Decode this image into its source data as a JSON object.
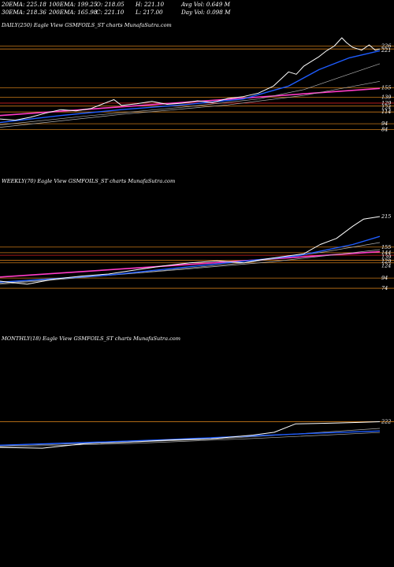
{
  "header": {
    "row1": [
      "20EMA: 225.18",
      "100EMA: 199.25",
      "O: 218.05",
      "H: 221.10",
      "Avg Vol: 0.649 M"
    ],
    "row2": [
      "30EMA: 218.36",
      "200EMA: 165.98",
      "C: 221.10",
      "L: 217.00",
      "Day Vol: 0.098  M"
    ]
  },
  "colors": {
    "price": "#ffffff",
    "ema_blue": "#1e5cff",
    "ema_gray": "#b0b0b0",
    "level_orange": "#c87818",
    "level_pink": "#ff3cc8",
    "level_red": "#d02020",
    "background": "#000000"
  },
  "chart_data": [
    {
      "type": "line",
      "label": "DAILY(250) Eagle  View  GSMFOILS_ST charts MunafaSutra.com",
      "n": 250,
      "ylim": [
        50,
        240
      ],
      "tick_labels": [
        {
          "text": "226",
          "value": 226
        },
        {
          "text": "221",
          "value": 221
        },
        {
          "text": "155",
          "value": 155
        },
        {
          "text": "139",
          "value": 139
        },
        {
          "text": "129",
          "value": 129
        },
        {
          "text": "124",
          "value": 124
        },
        {
          "text": "114",
          "value": 114
        },
        {
          "text": "94",
          "value": 94
        },
        {
          "text": "84",
          "value": 84
        }
      ],
      "hlines": [
        {
          "value": 226,
          "color": "level_orange"
        },
        {
          "value": 221,
          "color": "level_orange"
        },
        {
          "value": 155,
          "color": "level_orange"
        },
        {
          "value": 139,
          "color": "level_orange"
        },
        {
          "value": 129,
          "color": "level_red"
        },
        {
          "value": 124,
          "color": "level_orange"
        },
        {
          "value": 114,
          "color": "level_orange"
        },
        {
          "value": 94,
          "color": "level_orange"
        },
        {
          "value": 84,
          "color": "level_orange"
        }
      ],
      "trend": {
        "from": [
          0,
          108
        ],
        "to": [
          250,
          154
        ],
        "color": "level_pink"
      },
      "price_path": [
        [
          0,
          102
        ],
        [
          10,
          100
        ],
        [
          20,
          105
        ],
        [
          30,
          112
        ],
        [
          40,
          118
        ],
        [
          50,
          116
        ],
        [
          60,
          120
        ],
        [
          70,
          130
        ],
        [
          75,
          135
        ],
        [
          80,
          125
        ],
        [
          90,
          128
        ],
        [
          100,
          132
        ],
        [
          110,
          127
        ],
        [
          120,
          129
        ],
        [
          130,
          133
        ],
        [
          140,
          130
        ],
        [
          150,
          137
        ],
        [
          160,
          140
        ],
        [
          170,
          146
        ],
        [
          180,
          158
        ],
        [
          185,
          170
        ],
        [
          190,
          182
        ],
        [
          195,
          178
        ],
        [
          200,
          192
        ],
        [
          205,
          200
        ],
        [
          210,
          208
        ],
        [
          215,
          218
        ],
        [
          220,
          226
        ],
        [
          225,
          240
        ],
        [
          228,
          232
        ],
        [
          232,
          224
        ],
        [
          238,
          219
        ],
        [
          243,
          228
        ],
        [
          247,
          219
        ],
        [
          250,
          221
        ]
      ],
      "ema_blue": [
        [
          0,
          96
        ],
        [
          40,
          108
        ],
        [
          80,
          118
        ],
        [
          120,
          126
        ],
        [
          160,
          136
        ],
        [
          190,
          158
        ],
        [
          210,
          186
        ],
        [
          230,
          206
        ],
        [
          250,
          218
        ]
      ],
      "ema_gray": [
        [
          0,
          92
        ],
        [
          60,
          108
        ],
        [
          120,
          122
        ],
        [
          170,
          136
        ],
        [
          200,
          152
        ],
        [
          225,
          174
        ],
        [
          250,
          196
        ]
      ],
      "ema_gray2": [
        [
          0,
          88
        ],
        [
          80,
          110
        ],
        [
          150,
          126
        ],
        [
          200,
          142
        ],
        [
          250,
          166
        ]
      ]
    },
    {
      "type": "line",
      "label": "WEEKLY(70) Eagle  View  GSMFOILS_ST charts MunafaSutra.com",
      "n": 70,
      "ylim": [
        40,
        260
      ],
      "tick_labels": [
        {
          "text": "215",
          "value": 215
        },
        {
          "text": "155",
          "value": 155
        },
        {
          "text": "144",
          "value": 144
        },
        {
          "text": "139",
          "value": 139
        },
        {
          "text": "129",
          "value": 129
        },
        {
          "text": "124",
          "value": 124
        },
        {
          "text": "94",
          "value": 94
        },
        {
          "text": "74",
          "value": 74
        }
      ],
      "hlines": [
        {
          "value": 155,
          "color": "level_orange"
        },
        {
          "value": 144,
          "color": "level_orange"
        },
        {
          "value": 139,
          "color": "level_red"
        },
        {
          "value": 129,
          "color": "level_orange"
        },
        {
          "value": 124,
          "color": "level_orange"
        },
        {
          "value": 94,
          "color": "level_orange"
        },
        {
          "value": 74,
          "color": "level_orange"
        }
      ],
      "trend": {
        "from": [
          0,
          96
        ],
        "to": [
          70,
          146
        ],
        "color": "level_pink"
      },
      "price_path": [
        [
          0,
          88
        ],
        [
          5,
          82
        ],
        [
          10,
          92
        ],
        [
          15,
          98
        ],
        [
          20,
          102
        ],
        [
          25,
          110
        ],
        [
          30,
          118
        ],
        [
          35,
          124
        ],
        [
          40,
          128
        ],
        [
          45,
          124
        ],
        [
          48,
          130
        ],
        [
          52,
          136
        ],
        [
          56,
          142
        ],
        [
          59,
          160
        ],
        [
          62,
          172
        ],
        [
          65,
          196
        ],
        [
          67,
          210
        ],
        [
          70,
          215
        ]
      ],
      "ema_blue": [
        [
          0,
          86
        ],
        [
          20,
          100
        ],
        [
          40,
          122
        ],
        [
          55,
          138
        ],
        [
          65,
          160
        ],
        [
          70,
          176
        ]
      ],
      "ema_gray": [
        [
          0,
          84
        ],
        [
          25,
          104
        ],
        [
          45,
          124
        ],
        [
          60,
          146
        ],
        [
          70,
          164
        ]
      ],
      "ema_gray2": [
        [
          0,
          82
        ],
        [
          30,
          108
        ],
        [
          50,
          126
        ],
        [
          70,
          150
        ]
      ]
    },
    {
      "type": "line",
      "label": "MONTHLY(18) Eagle  View  GSMFOILS_ST charts MunafaSutra.com",
      "n": 18,
      "ylim": [
        0,
        600
      ],
      "tick_labels": [
        {
          "text": "222",
          "value": 222
        }
      ],
      "hlines": [
        {
          "value": 222,
          "color": "level_orange"
        }
      ],
      "trend": null,
      "price_path": [
        [
          0,
          84
        ],
        [
          2,
          80
        ],
        [
          4,
          104
        ],
        [
          6,
          112
        ],
        [
          8,
          124
        ],
        [
          10,
          130
        ],
        [
          12,
          150
        ],
        [
          13,
          165
        ],
        [
          14,
          210
        ],
        [
          15,
          212
        ],
        [
          16,
          215
        ],
        [
          17,
          218
        ],
        [
          18,
          222
        ]
      ],
      "ema_blue": [
        [
          0,
          96
        ],
        [
          4,
          110
        ],
        [
          8,
          126
        ],
        [
          12,
          146
        ],
        [
          15,
          160
        ],
        [
          18,
          172
        ]
      ],
      "ema_gray": [
        [
          0,
          92
        ],
        [
          5,
          108
        ],
        [
          10,
          128
        ],
        [
          14,
          156
        ],
        [
          18,
          186
        ]
      ],
      "ema_gray2": [
        [
          0,
          88
        ],
        [
          6,
          104
        ],
        [
          12,
          132
        ],
        [
          18,
          164
        ]
      ]
    }
  ]
}
